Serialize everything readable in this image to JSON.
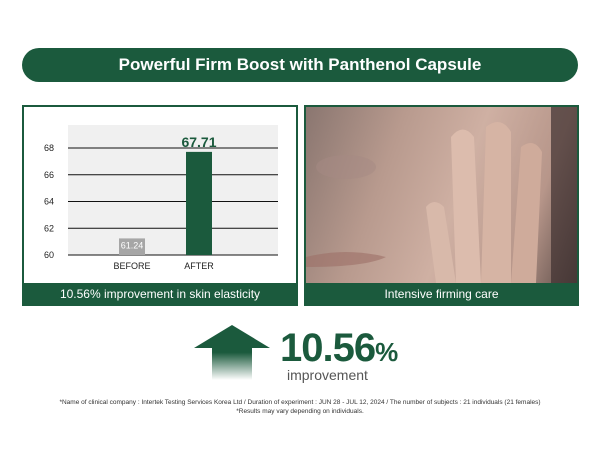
{
  "header": {
    "title": "Powerful Firm Boost with Panthenol Capsule"
  },
  "chart_panel": {
    "caption": "10.56% improvement in skin elasticity"
  },
  "photo_panel": {
    "caption": "Intensive firming care"
  },
  "highlight": {
    "value": "10.56",
    "unit": "%",
    "label": "improvement",
    "icon": "up-arrow-icon"
  },
  "footnotes": [
    "*Name of clinical company : Intertek Testing Services Korea Ltd / Duration of experiment : JUN 28 - JUL 12, 2024  / The number of  subjects : 21 individuals (21 females)",
    "*Results may vary depending on individuals."
  ],
  "colors": {
    "brand": "#1b5a3d",
    "before_bar": "#a6a6a6",
    "plot_bg": "#f0f0f0"
  },
  "chart_data": {
    "type": "bar",
    "categories": [
      "BEFORE",
      "AFTER"
    ],
    "values": [
      61.24,
      67.71
    ],
    "data_labels": [
      "61.24",
      "67.71"
    ],
    "ylim": [
      60,
      68
    ],
    "yticks": [
      60,
      62,
      64,
      66,
      68
    ],
    "grid": true,
    "title": "",
    "xlabel": "",
    "ylabel": ""
  }
}
